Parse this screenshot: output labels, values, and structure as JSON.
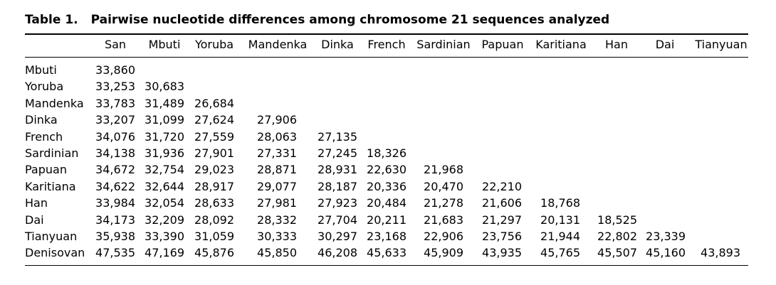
{
  "table": {
    "label": "Table 1.",
    "caption": "Pairwise nucleotide differences among chromosome 21 sequences analyzed",
    "columns": [
      "San",
      "Mbuti",
      "Yoruba",
      "Mandenka",
      "Dinka",
      "French",
      "Sardinian",
      "Papuan",
      "Karitiana",
      "Han",
      "Dai",
      "Tianyuan"
    ],
    "rows": [
      {
        "name": "Mbuti",
        "values": [
          "33,860"
        ]
      },
      {
        "name": "Yoruba",
        "values": [
          "33,253",
          "30,683"
        ]
      },
      {
        "name": "Mandenka",
        "values": [
          "33,783",
          "31,489",
          "26,684"
        ]
      },
      {
        "name": "Dinka",
        "values": [
          "33,207",
          "31,099",
          "27,624",
          "27,906"
        ]
      },
      {
        "name": "French",
        "values": [
          "34,076",
          "31,720",
          "27,559",
          "28,063",
          "27,135"
        ]
      },
      {
        "name": "Sardinian",
        "values": [
          "34,138",
          "31,936",
          "27,901",
          "27,331",
          "27,245",
          "18,326"
        ]
      },
      {
        "name": "Papuan",
        "values": [
          "34,672",
          "32,754",
          "29,023",
          "28,871",
          "28,931",
          "22,630",
          "21,968"
        ]
      },
      {
        "name": "Karitiana",
        "values": [
          "34,622",
          "32,644",
          "28,917",
          "29,077",
          "28,187",
          "20,336",
          "20,470",
          "22,210"
        ]
      },
      {
        "name": "Han",
        "values": [
          "33,984",
          "32,054",
          "28,633",
          "27,981",
          "27,923",
          "20,484",
          "21,278",
          "21,606",
          "18,768"
        ]
      },
      {
        "name": "Dai",
        "values": [
          "34,173",
          "32,209",
          "28,092",
          "28,332",
          "27,704",
          "20,211",
          "21,683",
          "21,297",
          "20,131",
          "18,525"
        ]
      },
      {
        "name": "Tianyuan",
        "values": [
          "35,938",
          "33,390",
          "31,059",
          "30,333",
          "30,297",
          "23,168",
          "22,906",
          "23,756",
          "21,944",
          "22,802",
          "23,339"
        ]
      },
      {
        "name": "Denisovan",
        "values": [
          "47,535",
          "47,169",
          "45,876",
          "45,850",
          "46,208",
          "45,633",
          "45,909",
          "43,935",
          "45,765",
          "45,507",
          "45,160",
          "43,893"
        ]
      }
    ]
  }
}
